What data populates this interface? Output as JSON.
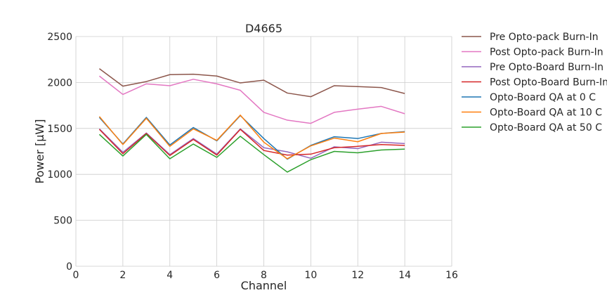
{
  "chart_data": {
    "type": "line",
    "title": "D4665",
    "xlabel": "Channel",
    "ylabel": "Power [μW]",
    "xlim": [
      0,
      16
    ],
    "ylim": [
      0,
      2500
    ],
    "xticks": [
      "0",
      "2",
      "4",
      "6",
      "8",
      "10",
      "12",
      "14",
      "16"
    ],
    "yticks": [
      "0",
      "500",
      "1000",
      "1500",
      "2000",
      "2500"
    ],
    "grid": true,
    "legend_position": "outside-right",
    "x": [
      1,
      2,
      3,
      4,
      5,
      6,
      7,
      8,
      9,
      10,
      11,
      12,
      13,
      14
    ],
    "series": [
      {
        "name": "Pre Opto-pack Burn-In",
        "color": "#8c564b",
        "values": [
          2150,
          1960,
          2010,
          2085,
          2090,
          2070,
          1995,
          2025,
          1885,
          1845,
          1965,
          1955,
          1945,
          1880
        ]
      },
      {
        "name": "Post Opto-pack Burn-In",
        "color": "#e377c2",
        "values": [
          2070,
          1870,
          1985,
          1965,
          2035,
          1985,
          1915,
          1675,
          1590,
          1555,
          1675,
          1710,
          1740,
          1660
        ]
      },
      {
        "name": "Pre Opto-Board Burn-In",
        "color": "#9467bd",
        "values": [
          1495,
          1240,
          1450,
          1215,
          1390,
          1220,
          1495,
          1290,
          1245,
          1175,
          1300,
          1280,
          1350,
          1335
        ]
      },
      {
        "name": "Post Opto-Board Burn-In",
        "color": "#d62728",
        "values": [
          1490,
          1225,
          1445,
          1205,
          1380,
          1210,
          1490,
          1260,
          1210,
          1220,
          1290,
          1305,
          1325,
          1315
        ]
      },
      {
        "name": "Opto-Board QA at 0 C",
        "color": "#1f77b4",
        "values": [
          1620,
          1330,
          1620,
          1320,
          1510,
          1365,
          1640,
          1390,
          1165,
          1315,
          1410,
          1390,
          1445,
          1465
        ]
      },
      {
        "name": "Opto-Board QA at 10 C",
        "color": "#ff7f0e",
        "values": [
          1630,
          1325,
          1610,
          1305,
          1495,
          1370,
          1645,
          1350,
          1170,
          1310,
          1395,
          1355,
          1445,
          1460
        ]
      },
      {
        "name": "Opto-Board QA at 50 C",
        "color": "#2ca02c",
        "values": [
          1435,
          1200,
          1435,
          1170,
          1330,
          1185,
          1415,
          1215,
          1025,
          1160,
          1250,
          1235,
          1265,
          1275
        ]
      }
    ]
  }
}
